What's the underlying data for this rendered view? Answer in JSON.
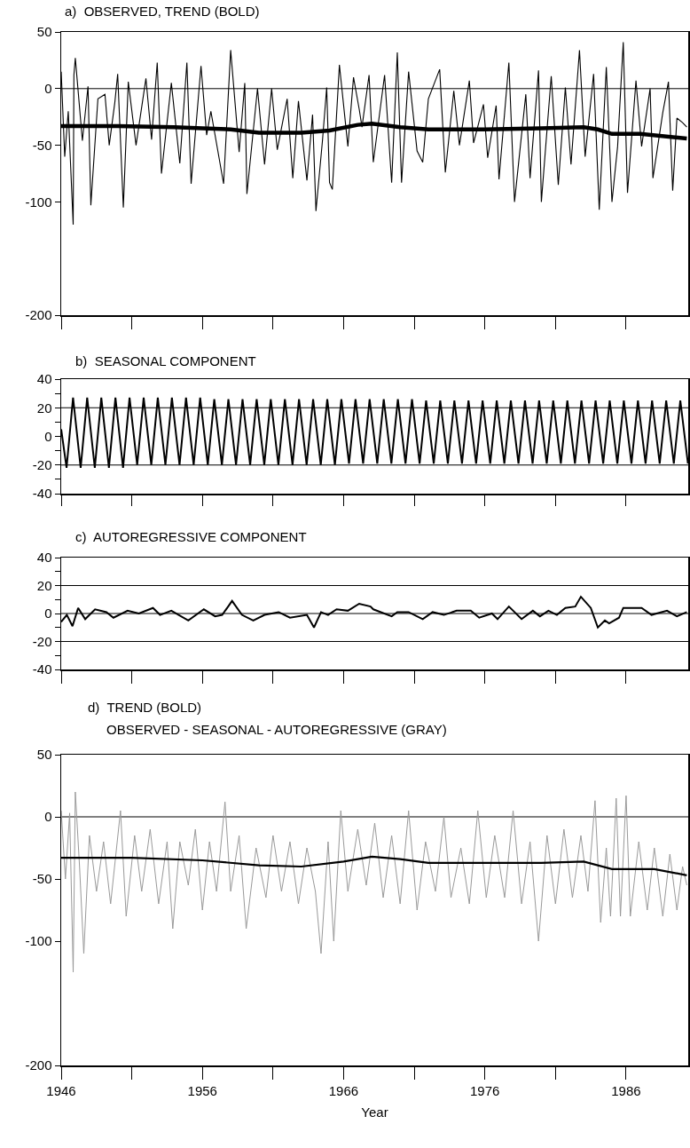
{
  "chart_data": [
    {
      "type": "line",
      "title": "a)  OBSERVED, TREND (BOLD)",
      "xlim": [
        1946,
        1990.4
      ],
      "xticks": [
        1946,
        {
          "value": 1951,
          "label": null
        },
        1956,
        {
          "value": 1961,
          "label": null
        },
        1966,
        {
          "value": 1971,
          "label": null
        },
        1976,
        {
          "value": 1981,
          "label": null
        },
        1986
      ],
      "ylim": [
        -200,
        50
      ],
      "yticks": [
        50,
        0,
        -50,
        -100,
        -200
      ],
      "tick_labels": "y",
      "grid": false,
      "ref_lines": [
        {
          "axis": "y",
          "value": 0,
          "color": "#000000"
        }
      ],
      "series": [
        {
          "color": "#000000",
          "x": [
            1946.0,
            1946.25,
            1946.5,
            1946.85,
            1946.9,
            1947.0,
            1947.5,
            1947.9,
            1948.1,
            1948.6,
            1949.1,
            1949.4,
            1949.8,
            1950.0,
            1950.4,
            1950.75,
            1951.3,
            1952.0,
            1952.4,
            1952.8,
            1953.1,
            1953.8,
            1954.4,
            1954.9,
            1955.2,
            1955.9,
            1956.3,
            1956.6,
            1957.5,
            1958.0,
            1958.6,
            1959.0,
            1959.15,
            1959.9,
            1960.4,
            1960.9,
            1961.3,
            1962.0,
            1962.4,
            1962.8,
            1963.4,
            1963.8,
            1964.04,
            1964.5,
            1964.8,
            1965.0,
            1965.2,
            1965.7,
            1966.3,
            1966.7,
            1967.1,
            1967.3,
            1967.8,
            1968.1,
            1968.9,
            1969.4,
            1969.8,
            1970.1,
            1970.6,
            1971.2,
            1971.6,
            1972.0,
            1972.8,
            1973.2,
            1973.8,
            1974.2,
            1974.9,
            1975.2,
            1975.9,
            1976.2,
            1976.8,
            1977.0,
            1977.7,
            1978.1,
            1978.9,
            1979.2,
            1979.8,
            1980.0,
            1980.7,
            1981.2,
            1981.7,
            1982.1,
            1982.7,
            1983.1,
            1983.7,
            1984.1,
            1984.6,
            1985.0,
            1985.4,
            1985.8,
            1986.1,
            1986.7,
            1987.1,
            1987.7,
            1987.9,
            1988.6,
            1989.0,
            1989.3,
            1989.6,
            1990.0,
            1990.3
          ],
          "values": [
            15,
            -60,
            -20,
            -120,
            12,
            27,
            -46,
            2,
            -103,
            -9,
            -5,
            -50,
            -12,
            13,
            -105,
            6,
            -50,
            9,
            -45,
            23,
            -75,
            5,
            -66,
            23,
            -84,
            20,
            -41,
            -20,
            -84,
            34,
            -56,
            5,
            -93,
            0,
            -67,
            0,
            -54,
            -9,
            -79,
            -11,
            -81,
            -23,
            -108,
            -46,
            1,
            -83,
            -89,
            21,
            -51,
            10,
            -18,
            -34,
            12,
            -65,
            12,
            -83,
            32,
            -83,
            15,
            -55,
            -65,
            -9,
            17,
            -74,
            -2,
            -50,
            7,
            -48,
            -14,
            -61,
            -15,
            -80,
            23,
            -100,
            -5,
            -79,
            16,
            -100,
            11,
            -85,
            1,
            -67,
            34,
            -60,
            13,
            -107,
            19,
            -100,
            -51,
            41,
            -92,
            7,
            -51,
            0,
            -79,
            -21,
            6,
            -90,
            -26,
            -30,
            -34
          ]
        },
        {
          "color": "#000000",
          "x": [
            1946,
            1950,
            1954,
            1956,
            1958,
            1960,
            1963,
            1965,
            1967,
            1968,
            1970,
            1972,
            1976,
            1980,
            1983,
            1984,
            1985,
            1987,
            1990.3
          ],
          "values": [
            -33,
            -33,
            -34,
            -35,
            -36,
            -39,
            -39,
            -37,
            -32,
            -31,
            -34,
            -36,
            -36,
            -35,
            -34,
            -36,
            -40,
            -40,
            -44
          ]
        }
      ]
    },
    {
      "type": "line",
      "title": "b)  SEASONAL COMPONENT",
      "xlim": [
        1946,
        1990.4
      ],
      "xticks": [
        1946,
        {
          "value": 1951,
          "label": null
        },
        1956,
        {
          "value": 1961,
          "label": null
        },
        1966,
        {
          "value": 1971,
          "label": null
        },
        1976,
        {
          "value": 1981,
          "label": null
        },
        1986
      ],
      "ylim": [
        -40,
        40
      ],
      "yticks": [
        40,
        {
          "value": 30,
          "label": null
        },
        20,
        {
          "value": 10,
          "label": null
        },
        0,
        {
          "value": -10,
          "label": null
        },
        -20,
        {
          "value": -30,
          "label": null
        },
        -40
      ],
      "tick_labels": "y",
      "grid": false,
      "ref_lines": [
        {
          "axis": "y",
          "value": 20,
          "color": "#000000"
        },
        {
          "axis": "y",
          "value": -20,
          "color": "#000000"
        }
      ],
      "series": [
        {
          "color": "#000000",
          "x": [
            1946.0,
            1946.38,
            1946.84,
            1947.38,
            1947.84,
            1948.38,
            1948.84,
            1949.38,
            1949.84,
            1950.38,
            1950.84,
            1951.38,
            1951.84,
            1952.38,
            1952.84,
            1953.38,
            1953.84,
            1954.38,
            1954.84,
            1955.38,
            1955.84,
            1956.38,
            1956.84,
            1957.38,
            1957.84,
            1958.38,
            1958.84,
            1959.38,
            1959.84,
            1960.38,
            1960.84,
            1961.38,
            1961.84,
            1962.38,
            1962.84,
            1963.38,
            1963.84,
            1964.38,
            1964.84,
            1965.38,
            1965.84,
            1966.38,
            1966.84,
            1967.38,
            1967.84,
            1968.38,
            1968.84,
            1969.38,
            1969.84,
            1970.38,
            1970.84,
            1971.38,
            1971.84,
            1972.38,
            1972.84,
            1973.38,
            1973.84,
            1974.38,
            1974.84,
            1975.38,
            1975.84,
            1976.38,
            1976.84,
            1977.38,
            1977.84,
            1978.38,
            1978.84,
            1979.38,
            1979.84,
            1980.38,
            1980.84,
            1981.38,
            1981.84,
            1982.38,
            1982.84,
            1983.38,
            1983.84,
            1984.38,
            1984.84,
            1985.38,
            1985.84,
            1986.38,
            1986.84,
            1987.38,
            1987.84,
            1988.38,
            1988.84,
            1989.38,
            1989.84,
            1990.38
          ],
          "values": [
            5,
            -22,
            27,
            -22,
            27,
            -22,
            27,
            -22,
            27,
            -22,
            27,
            -20,
            27,
            -20,
            27,
            -20,
            27,
            -20,
            27,
            -20,
            27,
            -20,
            26,
            -20,
            26,
            -20,
            26,
            -20,
            26,
            -20,
            26,
            -20,
            26,
            -20,
            26,
            -20,
            26,
            -20,
            26,
            -20,
            26,
            -19,
            26,
            -19,
            26,
            -19,
            26,
            -19,
            26,
            -19,
            26,
            -19,
            25,
            -19,
            25,
            -19,
            25,
            -19,
            25,
            -19,
            25,
            -19,
            25,
            -19,
            25,
            -19,
            25,
            -19,
            25,
            -19,
            25,
            -19,
            25,
            -19,
            25,
            -19,
            25,
            -19,
            25,
            -19,
            25,
            -19,
            25,
            -19,
            25,
            -19,
            25,
            -19,
            25,
            -19
          ]
        }
      ]
    },
    {
      "type": "line",
      "title": "c)  AUTOREGRESSIVE COMPONENT",
      "xlim": [
        1946,
        1990.4
      ],
      "xticks": [
        1946,
        {
          "value": 1951,
          "label": null
        },
        1956,
        {
          "value": 1961,
          "label": null
        },
        1966,
        {
          "value": 1971,
          "label": null
        },
        1976,
        {
          "value": 1981,
          "label": null
        },
        1986
      ],
      "ylim": [
        -40,
        40
      ],
      "yticks": [
        40,
        {
          "value": 30,
          "label": null
        },
        20,
        {
          "value": 10,
          "label": null
        },
        0,
        {
          "value": -10,
          "label": null
        },
        -20,
        {
          "value": -30,
          "label": null
        },
        -40
      ],
      "tick_labels": "y",
      "grid": false,
      "ref_lines": [
        {
          "axis": "y",
          "value": 20,
          "color": "#000000"
        },
        {
          "axis": "y",
          "value": 0,
          "color": "#000000"
        },
        {
          "axis": "y",
          "value": -20,
          "color": "#000000"
        }
      ],
      "series": [
        {
          "color": "#000000",
          "x": [
            1946.0,
            1946.4,
            1946.8,
            1947.2,
            1947.7,
            1948.4,
            1949.2,
            1949.7,
            1950.7,
            1951.5,
            1952.5,
            1953.0,
            1953.8,
            1955.0,
            1956.1,
            1956.9,
            1957.4,
            1958.1,
            1958.8,
            1959.6,
            1960.4,
            1961.4,
            1962.2,
            1963.4,
            1963.9,
            1964.4,
            1964.9,
            1965.5,
            1966.3,
            1967.1,
            1967.9,
            1968.1,
            1969.4,
            1969.8,
            1970.6,
            1971.6,
            1972.3,
            1973.1,
            1974.0,
            1975.0,
            1975.6,
            1976.5,
            1976.9,
            1977.7,
            1978.6,
            1979.4,
            1979.9,
            1980.5,
            1981.1,
            1981.7,
            1982.4,
            1982.8,
            1983.5,
            1984.0,
            1984.5,
            1984.8,
            1985.5,
            1985.8,
            1987.1,
            1987.8,
            1988.9,
            1989.6,
            1990.3
          ],
          "values": [
            -6,
            -1,
            -9,
            4,
            -4,
            3,
            1,
            -3,
            2,
            0,
            4,
            -1,
            2,
            -5,
            3,
            -2,
            -1,
            9,
            -1,
            -5,
            -1,
            1,
            -3,
            -1,
            -10,
            1,
            -1,
            3,
            2,
            7,
            5,
            3,
            -2,
            1,
            1,
            -4,
            1,
            -1,
            2,
            2,
            -3,
            0,
            -4,
            5,
            -4,
            2,
            -2,
            2,
            -1,
            4,
            5,
            12,
            4,
            -10,
            -5,
            -7,
            -3,
            4,
            4,
            -1,
            2,
            -2,
            1
          ]
        }
      ]
    },
    {
      "type": "line",
      "title": "d)  TREND (BOLD)",
      "subtitle": "OBSERVED - SEASONAL - AUTOREGRESSIVE (GRAY)",
      "xlabel": "Year",
      "xlim": [
        1946,
        1990.4
      ],
      "xticks": [
        1946,
        {
          "value": 1951,
          "label": null
        },
        1956,
        {
          "value": 1961,
          "label": null
        },
        1966,
        {
          "value": 1971,
          "label": null
        },
        1976,
        {
          "value": 1981,
          "label": null
        },
        1986
      ],
      "ylim": [
        -200,
        50
      ],
      "yticks": [
        50,
        0,
        -50,
        -100,
        -200
      ],
      "grid": false,
      "ref_lines": [
        {
          "axis": "y",
          "value": 0,
          "color": "#000000"
        }
      ],
      "series": [
        {
          "color": "#999999",
          "x": [
            1946.0,
            1946.3,
            1946.6,
            1946.85,
            1947.0,
            1947.3,
            1947.6,
            1948.0,
            1948.5,
            1949.0,
            1949.5,
            1950.2,
            1950.6,
            1951.2,
            1951.7,
            1952.3,
            1952.9,
            1953.5,
            1953.9,
            1954.4,
            1955.0,
            1955.5,
            1956.0,
            1956.5,
            1957.0,
            1957.6,
            1958.0,
            1958.6,
            1959.1,
            1959.8,
            1960.5,
            1961.0,
            1961.6,
            1962.2,
            1962.8,
            1963.4,
            1964.0,
            1964.4,
            1964.9,
            1965.3,
            1965.8,
            1966.3,
            1967.0,
            1967.6,
            1968.2,
            1968.8,
            1969.4,
            1970.0,
            1970.6,
            1971.2,
            1971.8,
            1972.5,
            1973.1,
            1973.6,
            1974.3,
            1974.9,
            1975.5,
            1976.1,
            1976.7,
            1977.4,
            1978.0,
            1978.6,
            1979.2,
            1979.8,
            1980.4,
            1981.0,
            1981.6,
            1982.2,
            1982.8,
            1983.3,
            1983.8,
            1984.2,
            1984.6,
            1984.9,
            1985.3,
            1985.6,
            1986.0,
            1986.3,
            1986.9,
            1987.5,
            1988.0,
            1988.6,
            1989.1,
            1989.6,
            1990.0,
            1990.3
          ],
          "values": [
            5,
            -50,
            3,
            -125,
            20,
            -40,
            -110,
            -15,
            -60,
            -20,
            -70,
            5,
            -80,
            -15,
            -60,
            -10,
            -70,
            -20,
            -90,
            -20,
            -55,
            -10,
            -75,
            -20,
            -60,
            12,
            -60,
            -15,
            -90,
            -25,
            -65,
            -15,
            -60,
            -20,
            -70,
            -25,
            -60,
            -110,
            -20,
            -100,
            5,
            -60,
            -10,
            -55,
            -5,
            -65,
            -15,
            -70,
            5,
            -75,
            -20,
            -60,
            0,
            -65,
            -25,
            -70,
            5,
            -65,
            -15,
            -65,
            5,
            -70,
            -20,
            -100,
            -15,
            -70,
            -10,
            -65,
            -15,
            -60,
            13,
            -85,
            -25,
            -80,
            15,
            -80,
            17,
            -80,
            -20,
            -75,
            -25,
            -80,
            -30,
            -75,
            -40,
            -55
          ]
        },
        {
          "color": "#000000",
          "x": [
            1946,
            1951,
            1956,
            1960,
            1963,
            1966,
            1968,
            1970,
            1972,
            1976,
            1980,
            1983,
            1985,
            1988,
            1990.3
          ],
          "values": [
            -33,
            -33,
            -35,
            -39,
            -40,
            -36,
            -32,
            -34,
            -37,
            -37,
            -37,
            -36,
            -42,
            -42,
            -47
          ]
        }
      ]
    }
  ]
}
